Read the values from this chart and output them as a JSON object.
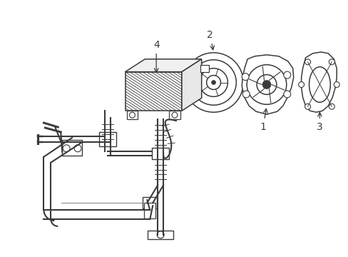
{
  "background_color": "#ffffff",
  "line_color": "#3a3a3a",
  "fig_width": 4.89,
  "fig_height": 3.6,
  "dpi": 100,
  "label_fontsize": 10
}
